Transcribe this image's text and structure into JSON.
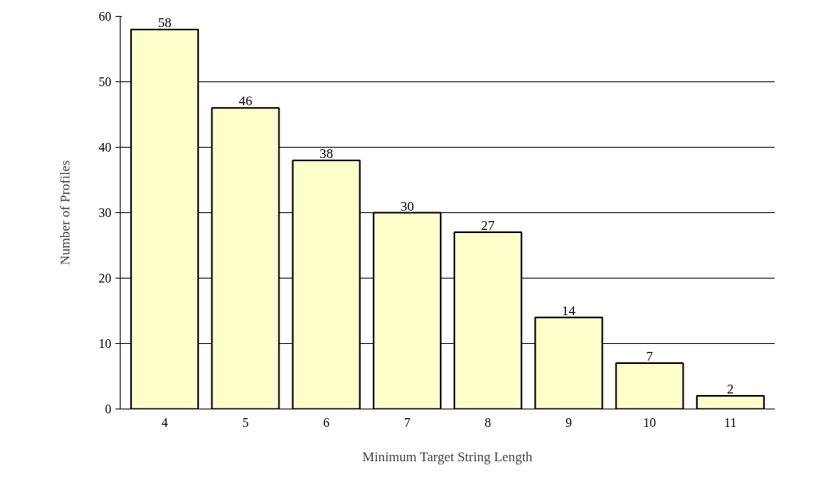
{
  "chart_data": {
    "type": "bar",
    "xlabel": "Minimum Target String Length",
    "ylabel": "Number of Profiles",
    "categories": [
      "4",
      "5",
      "6",
      "7",
      "8",
      "9",
      "10",
      "11"
    ],
    "values": [
      58,
      46,
      38,
      30,
      27,
      14,
      7,
      2
    ],
    "color": "#ffffcc",
    "ylim": [
      0,
      60
    ],
    "yticks": [
      0,
      10,
      20,
      30,
      40,
      50,
      60
    ],
    "grid": "y",
    "data_labels": true
  }
}
